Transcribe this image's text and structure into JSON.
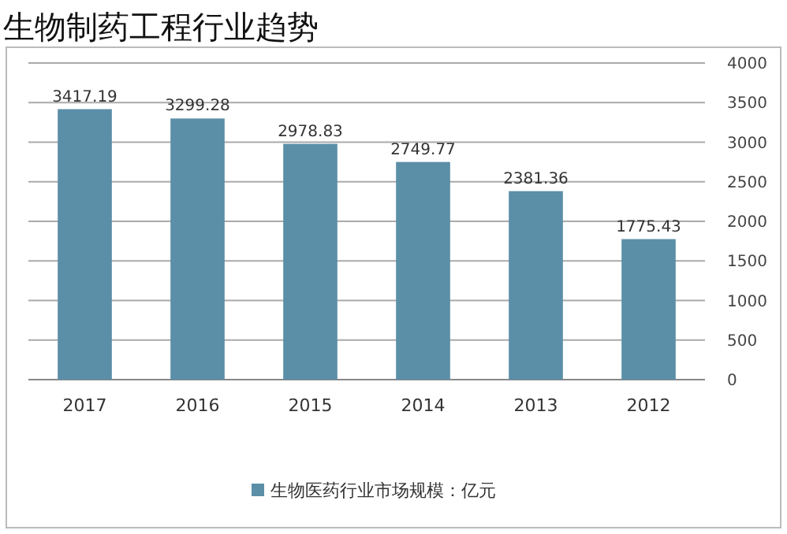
{
  "chart_data": {
    "type": "bar",
    "title": "生物制药工程行业趋势",
    "categories": [
      "2017",
      "2016",
      "2015",
      "2014",
      "2013",
      "2012"
    ],
    "series": [
      {
        "name": "生物医药行业市场规模：亿元",
        "color": "#5b8fa8",
        "values": [
          3417.19,
          3299.28,
          2978.83,
          2749.77,
          2381.36,
          1775.43
        ]
      }
    ],
    "ylim": [
      0,
      4000
    ],
    "yticks": [
      0,
      500,
      1000,
      1500,
      2000,
      2500,
      3000,
      3500,
      4000
    ],
    "grid": "y",
    "legend": "bottom",
    "data_labels": true
  }
}
